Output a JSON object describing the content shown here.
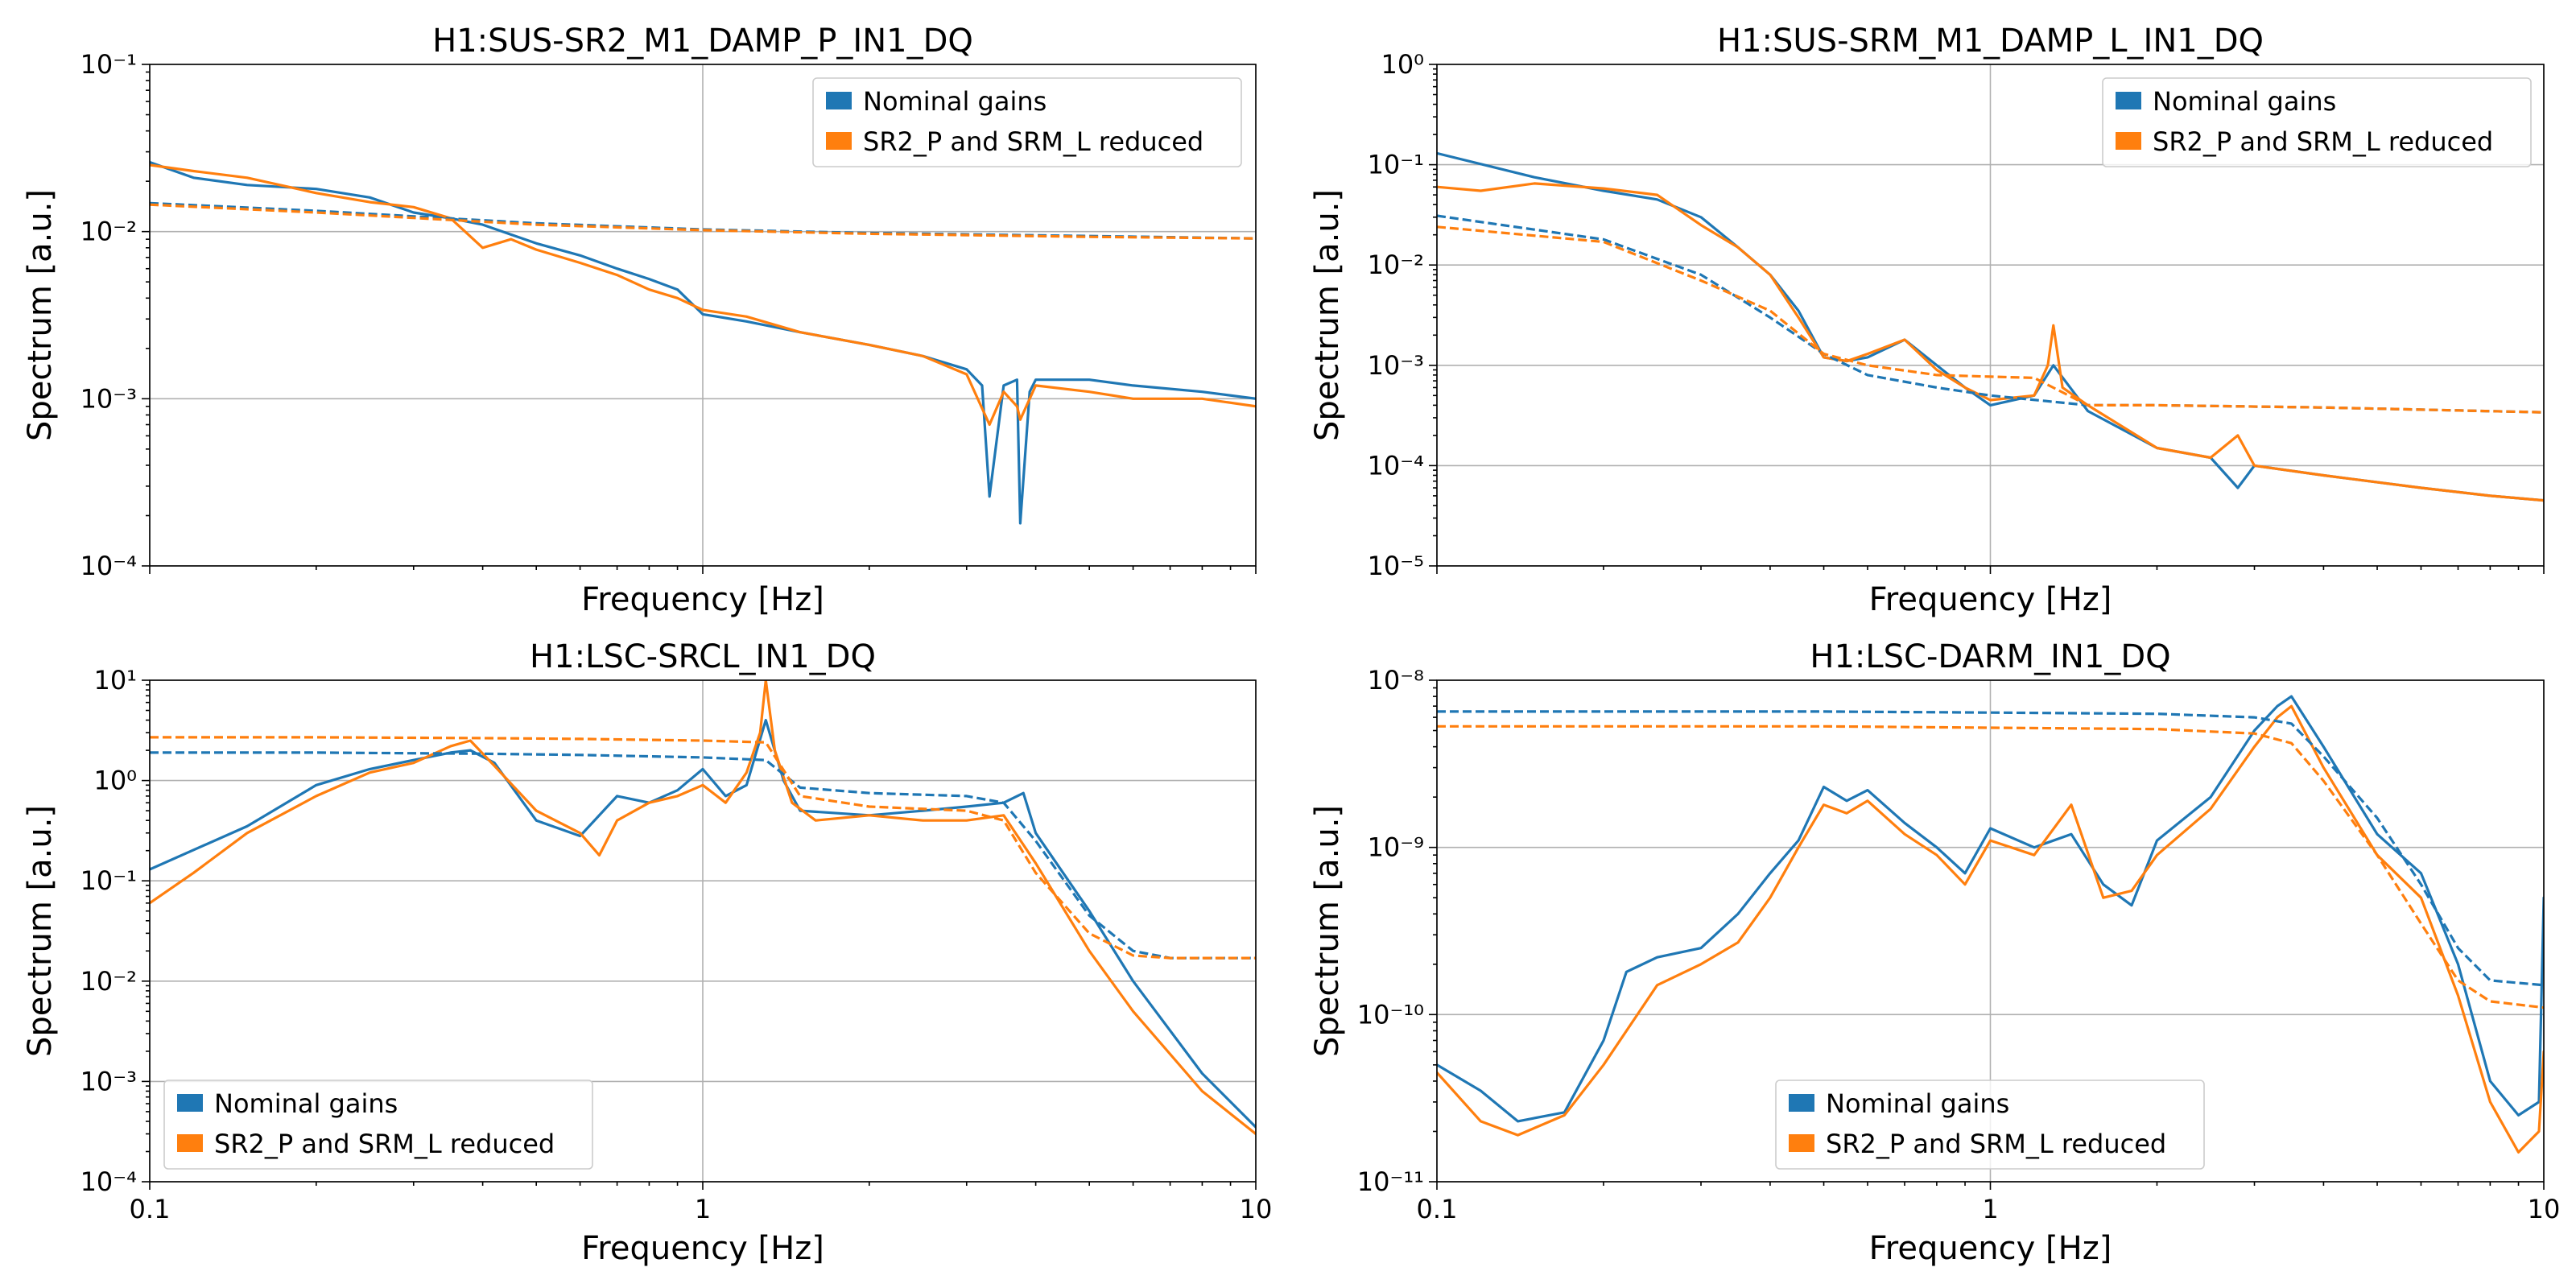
{
  "figure": {
    "colors": {
      "nominal": "#1f77b4",
      "reduced": "#ff7f0e"
    }
  },
  "chart_data": [
    {
      "type": "line",
      "title": "H1:SUS-SR2_M1_DAMP_P_IN1_DQ",
      "xlabel": "Frequency [Hz]",
      "ylabel": "Spectrum [a.u.]",
      "xscale": "log",
      "yscale": "log",
      "xlim": [
        0.1,
        10
      ],
      "ylim": [
        0.0001,
        0.1
      ],
      "x_tick_labels_visible": false,
      "yticks": [
        {
          "v": 0.0001,
          "label": "10⁻⁴"
        },
        {
          "v": 0.001,
          "label": "10⁻³"
        },
        {
          "v": 0.01,
          "label": "10⁻²"
        },
        {
          "v": 0.1,
          "label": "10⁻¹"
        }
      ],
      "grid": true,
      "legend": "top-right",
      "series": [
        {
          "name": "Nominal gains",
          "color": "#1f77b4",
          "style": "solid",
          "x": [
            0.1,
            0.12,
            0.15,
            0.2,
            0.25,
            0.3,
            0.35,
            0.4,
            0.5,
            0.6,
            0.7,
            0.8,
            0.9,
            1.0,
            1.2,
            1.5,
            2.0,
            2.5,
            3.0,
            3.2,
            3.3,
            3.5,
            3.7,
            3.75,
            3.9,
            4.0,
            5.0,
            6.0,
            8.0,
            10.0
          ],
          "y": [
            0.026,
            0.021,
            0.019,
            0.018,
            0.016,
            0.013,
            0.012,
            0.011,
            0.0085,
            0.0072,
            0.006,
            0.0052,
            0.0045,
            0.0032,
            0.0029,
            0.0025,
            0.0021,
            0.0018,
            0.0015,
            0.0012,
            0.00026,
            0.0012,
            0.0013,
            0.00018,
            0.0011,
            0.0013,
            0.0013,
            0.0012,
            0.0011,
            0.001
          ]
        },
        {
          "name": "SR2_P and SRM_L reduced",
          "color": "#ff7f0e",
          "style": "solid",
          "x": [
            0.1,
            0.12,
            0.15,
            0.2,
            0.25,
            0.3,
            0.35,
            0.4,
            0.45,
            0.5,
            0.6,
            0.7,
            0.8,
            0.9,
            1.0,
            1.2,
            1.5,
            2.0,
            2.5,
            3.0,
            3.3,
            3.5,
            3.7,
            3.75,
            4.0,
            5.0,
            6.0,
            8.0,
            10.0
          ],
          "y": [
            0.025,
            0.023,
            0.021,
            0.017,
            0.015,
            0.014,
            0.012,
            0.008,
            0.009,
            0.0078,
            0.0065,
            0.0055,
            0.0045,
            0.004,
            0.0034,
            0.0031,
            0.0025,
            0.0021,
            0.0018,
            0.0014,
            0.0007,
            0.0011,
            0.0009,
            0.00075,
            0.0012,
            0.0011,
            0.001,
            0.001,
            0.0009
          ]
        },
        {
          "name": "Nominal gains",
          "color": "#1f77b4",
          "style": "dashed",
          "x": [
            0.1,
            0.2,
            0.5,
            1.0,
            2.0,
            5.0,
            10.0
          ],
          "y": [
            0.0148,
            0.0133,
            0.0112,
            0.0103,
            0.0098,
            0.0094,
            0.0091
          ]
        },
        {
          "name": "SR2_P and SRM_L reduced",
          "color": "#ff7f0e",
          "style": "dashed",
          "x": [
            0.1,
            0.2,
            0.5,
            1.0,
            2.0,
            5.0,
            10.0
          ],
          "y": [
            0.0145,
            0.013,
            0.011,
            0.0102,
            0.0097,
            0.0093,
            0.0091
          ]
        }
      ]
    },
    {
      "type": "line",
      "title": "H1:SUS-SRM_M1_DAMP_L_IN1_DQ",
      "xlabel": "Frequency [Hz]",
      "ylabel": "Spectrum [a.u.]",
      "xscale": "log",
      "yscale": "log",
      "xlim": [
        0.1,
        10
      ],
      "ylim": [
        1e-05,
        1
      ],
      "x_tick_labels_visible": false,
      "yticks": [
        {
          "v": 1e-05,
          "label": "10⁻⁵"
        },
        {
          "v": 0.0001,
          "label": "10⁻⁴"
        },
        {
          "v": 0.001,
          "label": "10⁻³"
        },
        {
          "v": 0.01,
          "label": "10⁻²"
        },
        {
          "v": 0.1,
          "label": "10⁻¹"
        },
        {
          "v": 1,
          "label": "10⁰"
        }
      ],
      "grid": true,
      "legend": "top-right",
      "series": [
        {
          "name": "Nominal gains",
          "color": "#1f77b4",
          "style": "solid",
          "x": [
            0.1,
            0.15,
            0.2,
            0.25,
            0.3,
            0.35,
            0.4,
            0.45,
            0.5,
            0.55,
            0.6,
            0.7,
            0.8,
            0.9,
            1.0,
            1.2,
            1.3,
            1.5,
            2.0,
            2.5,
            2.8,
            3.0,
            4.0,
            6.0,
            8.0,
            10.0
          ],
          "y": [
            0.13,
            0.075,
            0.055,
            0.045,
            0.03,
            0.015,
            0.008,
            0.0035,
            0.0012,
            0.0011,
            0.0012,
            0.0018,
            0.001,
            0.0006,
            0.0004,
            0.0005,
            0.001,
            0.00035,
            0.00015,
            0.00012,
            6e-05,
            0.0001,
            8e-05,
            6e-05,
            5e-05,
            4.5e-05
          ]
        },
        {
          "name": "SR2_P and SRM_L reduced",
          "color": "#ff7f0e",
          "style": "solid",
          "x": [
            0.1,
            0.12,
            0.15,
            0.2,
            0.25,
            0.3,
            0.35,
            0.4,
            0.45,
            0.5,
            0.55,
            0.6,
            0.7,
            0.8,
            0.9,
            1.0,
            1.2,
            1.27,
            1.3,
            1.35,
            1.5,
            2.0,
            2.5,
            2.8,
            3.0,
            4.0,
            6.0,
            8.0,
            10.0
          ],
          "y": [
            0.06,
            0.055,
            0.065,
            0.058,
            0.05,
            0.025,
            0.015,
            0.008,
            0.003,
            0.0012,
            0.0011,
            0.0013,
            0.0018,
            0.0009,
            0.0006,
            0.00045,
            0.0005,
            0.001,
            0.0025,
            0.0006,
            0.0004,
            0.00015,
            0.00012,
            0.0002,
            0.0001,
            8e-05,
            6e-05,
            5e-05,
            4.5e-05
          ]
        },
        {
          "name": "Nominal gains",
          "color": "#1f77b4",
          "style": "dashed",
          "x": [
            0.1,
            0.2,
            0.3,
            0.4,
            0.5,
            0.6,
            0.8,
            1.0,
            1.5,
            2.0,
            4.0,
            10.0
          ],
          "y": [
            0.031,
            0.018,
            0.008,
            0.003,
            0.0013,
            0.0008,
            0.0006,
            0.0005,
            0.0004,
            0.0004,
            0.00038,
            0.00034
          ]
        },
        {
          "name": "SR2_P and SRM_L reduced",
          "color": "#ff7f0e",
          "style": "dashed",
          "x": [
            0.1,
            0.2,
            0.3,
            0.4,
            0.5,
            0.6,
            0.8,
            1.0,
            1.2,
            1.5,
            2.0,
            4.0,
            10.0
          ],
          "y": [
            0.024,
            0.017,
            0.007,
            0.0035,
            0.0013,
            0.001,
            0.0008,
            0.00077,
            0.00075,
            0.0004,
            0.0004,
            0.00038,
            0.00034
          ]
        }
      ]
    },
    {
      "type": "line",
      "title": "H1:LSC-SRCL_IN1_DQ",
      "xlabel": "Frequency [Hz]",
      "ylabel": "Spectrum [a.u.]",
      "xscale": "log",
      "yscale": "log",
      "xlim": [
        0.1,
        10
      ],
      "ylim": [
        0.0001,
        10
      ],
      "xticks": [
        {
          "v": 0.1,
          "label": "0.1"
        },
        {
          "v": 1,
          "label": "1"
        },
        {
          "v": 10,
          "label": "10"
        }
      ],
      "yticks": [
        {
          "v": 0.0001,
          "label": "10⁻⁴"
        },
        {
          "v": 0.001,
          "label": "10⁻³"
        },
        {
          "v": 0.01,
          "label": "10⁻²"
        },
        {
          "v": 0.1,
          "label": "10⁻¹"
        },
        {
          "v": 1,
          "label": "10⁰"
        },
        {
          "v": 10,
          "label": "10¹"
        }
      ],
      "grid": true,
      "legend": "bottom-left",
      "series": [
        {
          "name": "Nominal gains",
          "color": "#1f77b4",
          "style": "solid",
          "x": [
            0.1,
            0.15,
            0.2,
            0.25,
            0.3,
            0.35,
            0.38,
            0.42,
            0.5,
            0.6,
            0.7,
            0.8,
            0.9,
            1.0,
            1.1,
            1.2,
            1.3,
            1.4,
            1.5,
            2.0,
            2.5,
            3.0,
            3.5,
            3.8,
            4.0,
            5.0,
            6.0,
            8.0,
            10.0
          ],
          "y": [
            0.13,
            0.35,
            0.9,
            1.3,
            1.6,
            1.9,
            2.0,
            1.5,
            0.4,
            0.28,
            0.7,
            0.6,
            0.8,
            1.3,
            0.7,
            0.9,
            4.0,
            1.0,
            0.5,
            0.45,
            0.5,
            0.55,
            0.6,
            0.75,
            0.3,
            0.05,
            0.01,
            0.0012,
            0.00035
          ]
        },
        {
          "name": "SR2_P and SRM_L reduced",
          "color": "#ff7f0e",
          "style": "solid",
          "x": [
            0.1,
            0.12,
            0.15,
            0.2,
            0.25,
            0.3,
            0.35,
            0.38,
            0.42,
            0.5,
            0.6,
            0.65,
            0.7,
            0.8,
            0.9,
            1.0,
            1.1,
            1.2,
            1.27,
            1.3,
            1.35,
            1.45,
            1.6,
            2.0,
            2.5,
            3.0,
            3.5,
            4.0,
            5.0,
            6.0,
            8.0,
            10.0
          ],
          "y": [
            0.06,
            0.12,
            0.3,
            0.7,
            1.2,
            1.5,
            2.2,
            2.5,
            1.4,
            0.5,
            0.3,
            0.18,
            0.4,
            0.6,
            0.7,
            0.9,
            0.6,
            1.2,
            3.0,
            10.0,
            2.0,
            0.6,
            0.4,
            0.45,
            0.4,
            0.4,
            0.45,
            0.15,
            0.02,
            0.005,
            0.0008,
            0.0003
          ]
        },
        {
          "name": "Nominal gains",
          "color": "#1f77b4",
          "style": "dashed",
          "x": [
            0.1,
            0.2,
            0.4,
            0.6,
            1.0,
            1.3,
            1.5,
            2.0,
            3.0,
            3.5,
            4.0,
            5.0,
            6.0,
            7.0,
            10.0
          ],
          "y": [
            1.9,
            1.9,
            1.85,
            1.8,
            1.7,
            1.6,
            0.85,
            0.75,
            0.7,
            0.6,
            0.25,
            0.045,
            0.02,
            0.017,
            0.017
          ]
        },
        {
          "name": "SR2_P and SRM_L reduced",
          "color": "#ff7f0e",
          "style": "dashed",
          "x": [
            0.1,
            0.2,
            0.4,
            0.6,
            1.0,
            1.3,
            1.5,
            2.0,
            3.0,
            3.5,
            4.0,
            5.0,
            6.0,
            7.0,
            10.0
          ],
          "y": [
            2.7,
            2.7,
            2.65,
            2.6,
            2.5,
            2.4,
            0.7,
            0.55,
            0.5,
            0.4,
            0.12,
            0.03,
            0.018,
            0.017,
            0.017
          ]
        }
      ]
    },
    {
      "type": "line",
      "title": "H1:LSC-DARM_IN1_DQ",
      "xlabel": "Frequency [Hz]",
      "ylabel": "Spectrum [a.u.]",
      "xscale": "log",
      "yscale": "log",
      "xlim": [
        0.1,
        10
      ],
      "ylim": [
        1e-11,
        1e-08
      ],
      "xticks": [
        {
          "v": 0.1,
          "label": "0.1"
        },
        {
          "v": 1,
          "label": "1"
        },
        {
          "v": 10,
          "label": "10"
        }
      ],
      "yticks": [
        {
          "v": 1e-11,
          "label": "10⁻¹¹"
        },
        {
          "v": 1e-10,
          "label": "10⁻¹⁰"
        },
        {
          "v": 1e-09,
          "label": "10⁻⁹"
        },
        {
          "v": 1e-08,
          "label": "10⁻⁸"
        }
      ],
      "grid": true,
      "legend": "bottom-center",
      "series": [
        {
          "name": "Nominal gains",
          "color": "#1f77b4",
          "style": "solid",
          "x": [
            0.1,
            0.12,
            0.14,
            0.17,
            0.2,
            0.22,
            0.25,
            0.3,
            0.35,
            0.4,
            0.45,
            0.5,
            0.55,
            0.6,
            0.7,
            0.8,
            0.9,
            1.0,
            1.2,
            1.4,
            1.6,
            1.8,
            2.0,
            2.5,
            3.0,
            3.3,
            3.5,
            4.0,
            5.0,
            6.0,
            7.0,
            8.0,
            9.0,
            9.8,
            10.0
          ],
          "y": [
            5e-11,
            3.5e-11,
            2.3e-11,
            2.6e-11,
            7e-11,
            1.8e-10,
            2.2e-10,
            2.5e-10,
            4e-10,
            7e-10,
            1.1e-09,
            2.3e-09,
            1.9e-09,
            2.2e-09,
            1.4e-09,
            1e-09,
            7e-10,
            1.3e-09,
            1e-09,
            1.2e-09,
            6e-10,
            4.5e-10,
            1.1e-09,
            2e-09,
            5e-09,
            7e-09,
            8e-09,
            4e-09,
            1.2e-09,
            7e-10,
            2e-10,
            4e-11,
            2.5e-11,
            3e-11,
            5e-10
          ]
        },
        {
          "name": "SR2_P and SRM_L reduced",
          "color": "#ff7f0e",
          "style": "solid",
          "x": [
            0.1,
            0.12,
            0.14,
            0.17,
            0.2,
            0.25,
            0.3,
            0.35,
            0.4,
            0.45,
            0.5,
            0.55,
            0.6,
            0.7,
            0.8,
            0.9,
            1.0,
            1.2,
            1.4,
            1.6,
            1.8,
            2.0,
            2.5,
            3.0,
            3.3,
            3.5,
            4.0,
            5.0,
            6.0,
            7.0,
            8.0,
            9.0,
            9.8,
            10.0
          ],
          "y": [
            4.5e-11,
            2.3e-11,
            1.9e-11,
            2.5e-11,
            5e-11,
            1.5e-10,
            2e-10,
            2.7e-10,
            5e-10,
            1e-09,
            1.8e-09,
            1.6e-09,
            1.9e-09,
            1.2e-09,
            9e-10,
            6e-10,
            1.1e-09,
            9e-10,
            1.8e-09,
            5e-10,
            5.5e-10,
            9e-10,
            1.7e-09,
            4e-09,
            6e-09,
            7e-09,
            3e-09,
            9e-10,
            5e-10,
            1.3e-10,
            3e-11,
            1.5e-11,
            2e-11,
            6e-11
          ]
        },
        {
          "name": "Nominal gains",
          "color": "#1f77b4",
          "style": "dashed",
          "x": [
            0.1,
            0.5,
            1.0,
            2.0,
            3.0,
            3.5,
            4.0,
            5.0,
            6.0,
            7.0,
            8.0,
            10.0
          ],
          "y": [
            6.5e-09,
            6.5e-09,
            6.4e-09,
            6.3e-09,
            6e-09,
            5.5e-09,
            3.5e-09,
            1.5e-09,
            6e-10,
            2.5e-10,
            1.6e-10,
            1.5e-10
          ]
        },
        {
          "name": "SR2_P and SRM_L reduced",
          "color": "#ff7f0e",
          "style": "dashed",
          "x": [
            0.1,
            0.5,
            1.0,
            2.0,
            3.0,
            3.5,
            4.0,
            5.0,
            6.0,
            7.0,
            8.0,
            10.0
          ],
          "y": [
            5.3e-09,
            5.3e-09,
            5.2e-09,
            5.1e-09,
            4.8e-09,
            4.2e-09,
            2.5e-09,
            9e-10,
            3.5e-10,
            1.6e-10,
            1.2e-10,
            1.1e-10
          ]
        }
      ]
    }
  ]
}
